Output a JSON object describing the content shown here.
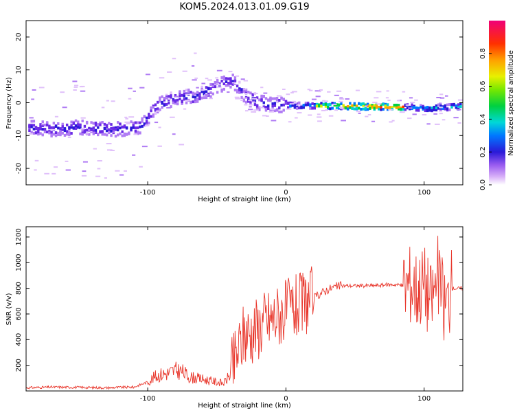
{
  "title": "KOM5.2024.013.01.09.G19",
  "chart_data": [
    {
      "type": "heatmap",
      "xlabel": "Height of straight line (km)",
      "ylabel": "Frequency (Hz)",
      "xlim": [
        -188,
        128
      ],
      "ylim": [
        -25,
        25
      ],
      "xticks": [
        -100,
        0,
        100
      ],
      "yticks": [
        -20,
        -10,
        0,
        10,
        20
      ],
      "xtick_labels": [
        "-100",
        "0",
        "100"
      ],
      "ytick_labels": [
        "-20",
        "-10",
        "0",
        "10",
        "20"
      ],
      "ridge": {
        "x": [
          -188,
          -170,
          -150,
          -135,
          -120,
          -105,
          -95,
          -80,
          -65,
          -50,
          -40,
          -30,
          -20,
          -10,
          0,
          20,
          40,
          60,
          80,
          90,
          100,
          110,
          128
        ],
        "y": [
          -7.5,
          -8,
          -7.5,
          -8,
          -8,
          -7,
          -1,
          1.5,
          2,
          5,
          7,
          2,
          0,
          -0.5,
          -0.8,
          -1,
          -1,
          -1.2,
          -1.3,
          -1.5,
          -1.8,
          -1.5,
          -1.2
        ]
      },
      "colorbar": {
        "label": "Normalized spectral amplitude",
        "ticks": [
          0.0,
          0.2,
          0.4,
          0.6,
          0.8
        ],
        "tick_labels": [
          "0.0",
          "0.2",
          "0.4",
          "0.6",
          "0.8"
        ],
        "range": [
          0,
          1
        ]
      }
    },
    {
      "type": "line",
      "xlabel": "Height of straight line (km)",
      "ylabel": "SNR (v/v)",
      "xlim": [
        -188,
        128
      ],
      "ylim": [
        0,
        1280
      ],
      "xticks": [
        -100,
        0,
        100
      ],
      "yticks": [
        200,
        400,
        600,
        800,
        1000,
        1200
      ],
      "xtick_labels": [
        "-100",
        "0",
        "100"
      ],
      "ytick_labels": [
        "200",
        "400",
        "600",
        "800",
        "1000",
        "1200"
      ],
      "color": "#e8352a",
      "series": [
        {
          "x": [
            -188,
            -170,
            -150,
            -130,
            -110,
            -100,
            -95,
            -90,
            -85,
            -80,
            -75,
            -70,
            -65,
            -60,
            -55,
            -50,
            -45,
            -40,
            -35,
            -30,
            -25,
            -20,
            -15,
            -10,
            -5,
            0,
            5,
            10,
            15,
            20,
            25,
            30,
            35,
            40,
            50,
            60,
            70,
            80,
            85,
            90,
            95,
            100,
            105,
            110,
            115,
            120,
            128
          ],
          "y": [
            25,
            30,
            28,
            25,
            30,
            70,
            110,
            130,
            140,
            160,
            150,
            110,
            100,
            90,
            80,
            70,
            60,
            130,
            300,
            450,
            460,
            500,
            550,
            560,
            600,
            620,
            640,
            660,
            700,
            720,
            760,
            790,
            810,
            820,
            820,
            820,
            825,
            830,
            820,
            850,
            800,
            850,
            700,
            900,
            650,
            800,
            800
          ]
        }
      ]
    }
  ]
}
